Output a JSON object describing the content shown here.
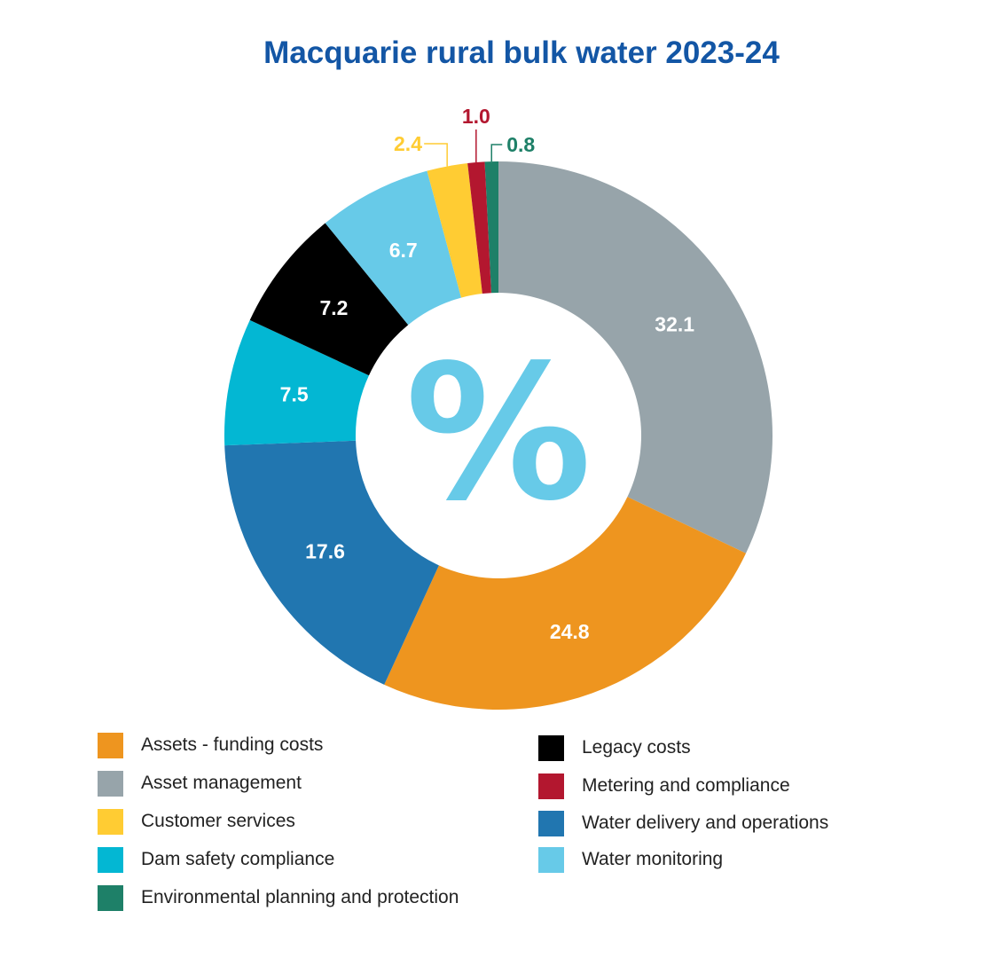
{
  "chart_data": {
    "type": "pie",
    "variant": "donut",
    "title": "Macquarie rural bulk water 2023-24",
    "center_symbol": "%",
    "slices": [
      {
        "name": "Environmental planning and protection",
        "value": 0.8,
        "label": "0.8",
        "color": "#1e8068"
      },
      {
        "name": "Asset management",
        "value": 32.1,
        "label": "32.1",
        "color": "#97a4aa"
      },
      {
        "name": "Assets - funding costs",
        "value": 24.8,
        "label": "24.8",
        "color": "#ee951f"
      },
      {
        "name": "Water delivery and operations",
        "value": 17.6,
        "label": "17.6",
        "color": "#2176b0"
      },
      {
        "name": "Dam safety compliance",
        "value": 7.5,
        "label": "7.5",
        "color": "#03b7d3"
      },
      {
        "name": "Legacy costs",
        "value": 7.2,
        "label": "7.2",
        "color": "#000000"
      },
      {
        "name": "Water monitoring",
        "value": 6.7,
        "label": "6.7",
        "color": "#67cae8"
      },
      {
        "name": "Customer services",
        "value": 2.4,
        "label": "2.4",
        "color": "#ffcc33"
      },
      {
        "name": "Metering and compliance",
        "value": 1.0,
        "label": "1.0",
        "color": "#b3172f"
      }
    ],
    "legend": [
      {
        "label": "Assets - funding costs",
        "color": "#ee951f"
      },
      {
        "label": "Asset management",
        "color": "#97a4aa"
      },
      {
        "label": "Customer services",
        "color": "#ffcc33"
      },
      {
        "label": "Dam safety compliance",
        "color": "#03b7d3"
      },
      {
        "label": "Environmental planning and protection",
        "color": "#1e8068"
      },
      {
        "label": "Legacy costs",
        "color": "#000000"
      },
      {
        "label": "Metering and compliance",
        "color": "#b3172f"
      },
      {
        "label": "Water delivery and operations",
        "color": "#2176b0"
      },
      {
        "label": "Water monitoring",
        "color": "#67cae8"
      }
    ],
    "legend_placement": "bottom",
    "title_color": "#1356a5",
    "center_symbol_color": "#67cae8"
  }
}
